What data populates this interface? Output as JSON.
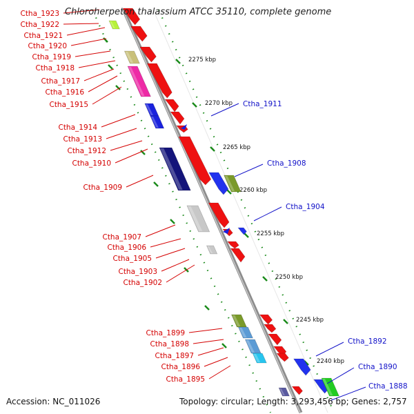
{
  "header": {
    "title": "Chloroherpeton thalassium ATCC 35110, complete genome"
  },
  "footer": {
    "accession": "Accession: NC_011026",
    "summary": "Topology: circular; Length: 3,293,456 bp; Genes: 2,757"
  },
  "colors": {
    "left_label": "#d40000",
    "right_label": "#1010c8",
    "ruler": "#1a8a1a",
    "backbone": "#8c8c8c"
  },
  "ruler_ticks": [
    "2275 kbp",
    "2270 kbp",
    "2265 kbp",
    "2260 kbp",
    "2255 kbp",
    "2250 kbp",
    "2245 kbp",
    "2240 kbp"
  ],
  "left_genes": [
    "Ctha_1923",
    "Ctha_1922",
    "Ctha_1921",
    "Ctha_1920",
    "Ctha_1919",
    "Ctha_1918",
    "Ctha_1917",
    "Ctha_1916",
    "Ctha_1915",
    "Ctha_1914",
    "Ctha_1913",
    "Ctha_1912",
    "Ctha_1910",
    "Ctha_1909",
    "Ctha_1907",
    "Ctha_1906",
    "Ctha_1905",
    "Ctha_1903",
    "Ctha_1902",
    "Ctha_1899",
    "Ctha_1898",
    "Ctha_1897",
    "Ctha_1896",
    "Ctha_1895"
  ],
  "right_genes": [
    "Ctha_1911",
    "Ctha_1908",
    "Ctha_1904",
    "Ctha_1892",
    "Ctha_1890",
    "Ctha_1888"
  ]
}
